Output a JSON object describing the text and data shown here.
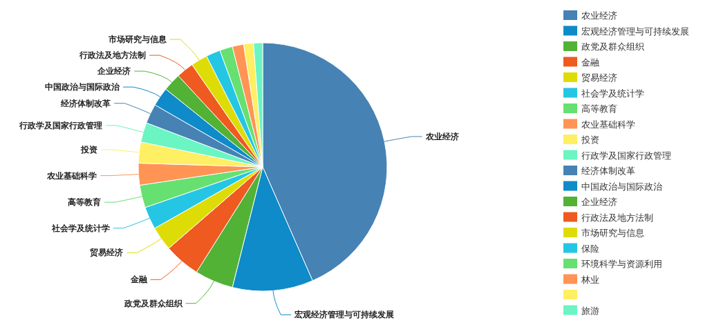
{
  "chart_data": {
    "type": "pie",
    "categories": [
      "农业经济",
      "宏观经济管理与可持续发展",
      "政党及群众组织",
      "金融",
      "贸易经济",
      "社会学及统计学",
      "高等教育",
      "农业基础科学",
      "投资",
      "行政学及国家行政管理",
      "经济体制改革",
      "中国政治与国际政治",
      "企业经济",
      "行政法及地方法制",
      "市场研究与信息",
      "保险",
      "环境科学与资源利用",
      "林业",
      null,
      "旅游"
    ],
    "values": [
      44.3,
      10.7,
      5.1,
      4.8,
      3.2,
      3.0,
      3.0,
      2.9,
      2.8,
      2.6,
      2.6,
      2.5,
      2.4,
      2.3,
      2.2,
      1.9,
      1.7,
      1.5,
      1.3,
      1.2
    ],
    "colors": [
      "#4682b4",
      "#0e8bc8",
      "#52b236",
      "#ee5a1f",
      "#dedc06",
      "#25c6e4",
      "#66e070",
      "#ff9455",
      "#ffef62",
      "#6af5c3",
      "#4682b4",
      "#0e8bc8",
      "#52b236",
      "#ee5a1f",
      "#dedc06",
      "#25c6e4",
      "#66e070",
      "#ff9455",
      "#ffef62",
      "#6af5c3"
    ],
    "legend": "right"
  }
}
